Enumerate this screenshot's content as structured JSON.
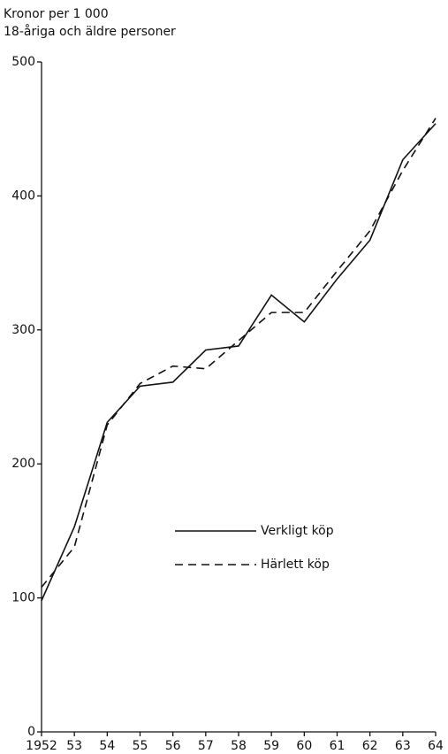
{
  "chart_data": {
    "type": "line",
    "ylabel": [
      "Kronor per 1 000",
      "18-åriga och äldre personer"
    ],
    "categories": [
      "1952",
      "53",
      "54",
      "55",
      "56",
      "57",
      "58",
      "59",
      "60",
      "61",
      "62",
      "63",
      "64"
    ],
    "series": [
      {
        "name": "Verkligt köp",
        "color": "#111111",
        "dash": false,
        "values": [
          98,
          153,
          231,
          258,
          261,
          285,
          288,
          326,
          306,
          338,
          367,
          427,
          454
        ]
      },
      {
        "name": "Härlett köp",
        "color": "#111111",
        "dash": true,
        "values": [
          108,
          138,
          229,
          260,
          273,
          271,
          292,
          313,
          313,
          344,
          374,
          419,
          458
        ]
      }
    ],
    "ylim": [
      0,
      500
    ],
    "yticks": [
      0,
      100,
      200,
      300,
      400,
      500
    ]
  }
}
